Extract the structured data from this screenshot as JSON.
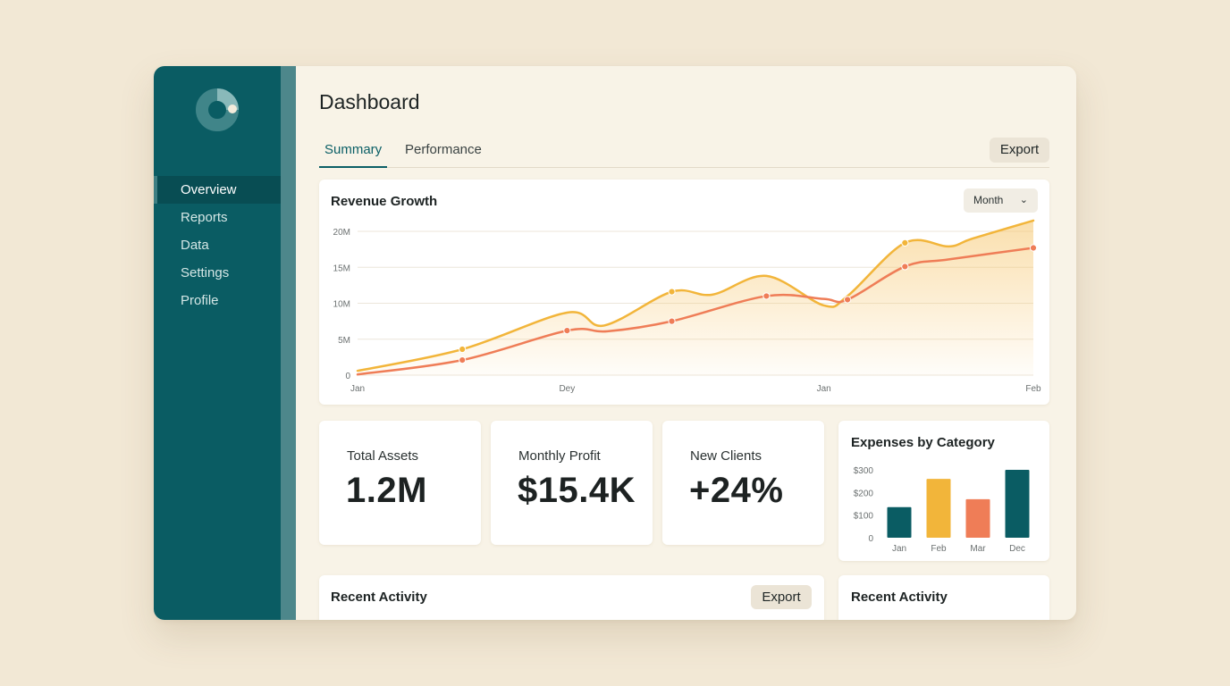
{
  "colors": {
    "sidebar": "#0a5c63",
    "accent_teal": "#0b5f66",
    "accent_gold": "#f2b53a",
    "accent_coral": "#ef7d57",
    "background": "#f2e8d5"
  },
  "sidebar": {
    "logo_icon": "ring-logo-icon",
    "items": [
      {
        "label": "Overview",
        "active": true
      },
      {
        "label": "Reports",
        "active": false
      },
      {
        "label": "Data",
        "active": false
      },
      {
        "label": "Settings",
        "active": false
      },
      {
        "label": "Profile",
        "active": false
      }
    ]
  },
  "header": {
    "title": "Dashboard",
    "tabs": [
      {
        "label": "Summary",
        "active": true
      },
      {
        "label": "Performance",
        "active": false
      }
    ],
    "export_label": "Export"
  },
  "revenue": {
    "title": "Revenue Growth",
    "period_select": "Month",
    "period_icon": "chevron-down-icon"
  },
  "kpis": [
    {
      "label": "Total Assets",
      "value": "1.2M"
    },
    {
      "label": "Monthly Profit",
      "value": "$15.4K"
    },
    {
      "label": "New Clients",
      "value": "+24%"
    }
  ],
  "expenses": {
    "title": "Expenses by Category"
  },
  "recent_activity": {
    "title": "Recent Activity",
    "export_label": "Export"
  },
  "recent_activity_side": {
    "title": "Recent Activity"
  },
  "chart_data": [
    {
      "type": "area",
      "title": "Revenue Growth",
      "xlabel": "",
      "ylabel": "",
      "x_tick_labels": [
        "Jan",
        "Dey",
        "Jan",
        "Feb"
      ],
      "y_tick_labels": [
        "0",
        "5M",
        "10M",
        "15M",
        "20M"
      ],
      "ylim": [
        0,
        20000000
      ],
      "grid": true,
      "series": [
        {
          "color": "#f2b53a",
          "fill": true,
          "x": [
            0,
            0.155,
            0.31,
            0.365,
            0.465,
            0.525,
            0.605,
            0.69,
            0.725,
            0.81,
            0.875,
            0.91,
            1.0
          ],
          "values": [
            600000,
            3600000,
            8700000,
            6900000,
            11600000,
            11200000,
            13800000,
            9700000,
            11000000,
            18400000,
            17900000,
            19000000,
            21500000
          ],
          "markers_at": [
            1,
            4,
            9
          ]
        },
        {
          "color": "#ef7d57",
          "fill": false,
          "x": [
            0,
            0.155,
            0.31,
            0.37,
            0.465,
            0.605,
            0.69,
            0.725,
            0.81,
            0.875,
            1.0
          ],
          "values": [
            100000,
            2100000,
            6200000,
            6100000,
            7500000,
            11000000,
            10600000,
            10500000,
            15100000,
            16100000,
            17700000
          ],
          "markers_at": [
            1,
            2,
            4,
            5,
            7,
            8,
            10
          ]
        }
      ]
    },
    {
      "type": "bar",
      "title": "Expenses by Category",
      "categories": [
        "Jan",
        "Feb",
        "Mar",
        "Dec"
      ],
      "values": [
        135,
        260,
        170,
        300
      ],
      "bar_colors": [
        "#0a5c63",
        "#f2b53a",
        "#ef7d57",
        "#0a5c63"
      ],
      "y_tick_labels": [
        "0",
        "$100",
        "$200",
        "$300"
      ],
      "ylim": [
        0,
        300
      ],
      "xlabel": "",
      "ylabel": ""
    }
  ]
}
